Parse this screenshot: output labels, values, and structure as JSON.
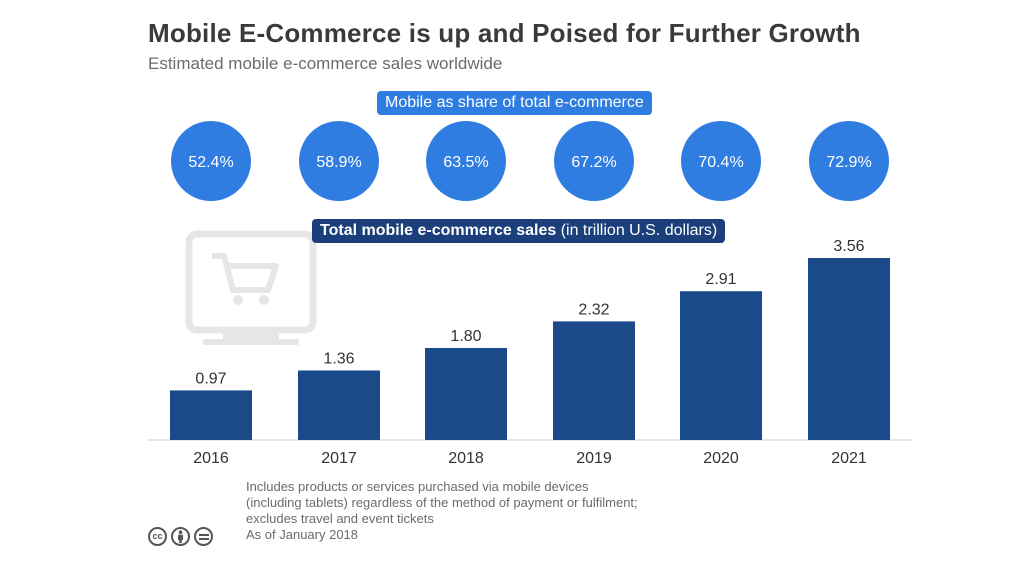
{
  "header": {
    "title": "Mobile E-Commerce is up and Poised for Further Growth",
    "subtitle": "Estimated mobile e-commerce sales worldwide"
  },
  "share_section": {
    "label": "Mobile as share of total e-commerce",
    "color": "#2f7de1"
  },
  "sales_section": {
    "label_bold": "Total mobile e-commerce sales",
    "label_rest": " (in trillion U.S. dollars)",
    "color": "#1a3f7a"
  },
  "chart_data": {
    "type": "bar",
    "categories": [
      "2016",
      "2017",
      "2018",
      "2019",
      "2020",
      "2021"
    ],
    "series": [
      {
        "name": "Total mobile e-commerce sales",
        "values": [
          0.97,
          1.36,
          1.8,
          2.32,
          2.91,
          3.56
        ],
        "value_labels": [
          "0.97",
          "1.36",
          "1.80",
          "2.32",
          "2.91",
          "3.56"
        ],
        "color": "#1a4a8a"
      }
    ],
    "share": {
      "values": [
        52.4,
        58.9,
        63.5,
        67.2,
        70.4,
        72.9
      ],
      "labels": [
        "52.4%",
        "58.9%",
        "63.5%",
        "67.2%",
        "70.4%",
        "72.9%"
      ],
      "color": "#2f7de1"
    },
    "ylim": [
      0,
      3.56
    ],
    "grid": false,
    "decoration": "shopping-cart-monitor-icon"
  },
  "footer": {
    "note_lines": [
      "Includes products or services purchased via mobile devices",
      "(including tablets) regardless of the method of payment or fulfilment;",
      "excludes travel and event tickets",
      "As of January 2018"
    ],
    "license_icons": [
      "cc-icon",
      "by-icon",
      "nd-icon"
    ]
  }
}
